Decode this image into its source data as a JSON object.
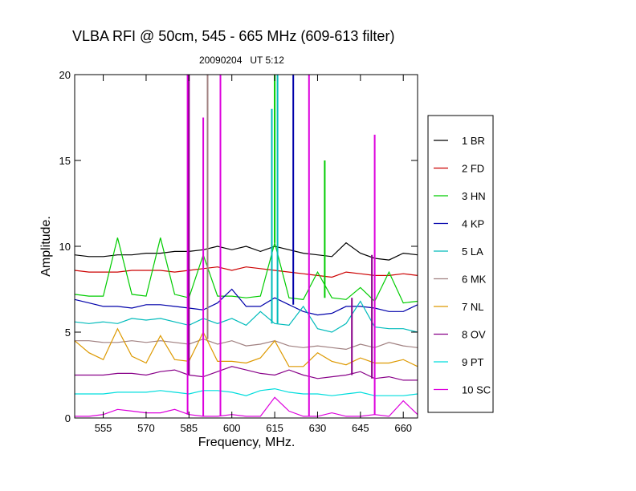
{
  "chart_data": {
    "type": "line",
    "title": "VLBA RFI @ 50cm, 545 - 665 MHz  (609-613 filter)",
    "subtitle": "20090204   UT 5:12",
    "xlabel": "Frequency, MHz.",
    "ylabel": "Amplitude.",
    "xlim": [
      545,
      665
    ],
    "ylim": [
      0,
      20
    ],
    "xticks": [
      555,
      570,
      585,
      600,
      615,
      630,
      645,
      660
    ],
    "yticks": [
      0,
      5,
      10,
      15,
      20
    ],
    "grid": false,
    "legend_position": "right",
    "x_step": 5,
    "series": [
      {
        "name": "1 BR",
        "color": "#000000",
        "values": [
          9.5,
          9.4,
          9.4,
          9.5,
          9.5,
          9.6,
          9.6,
          9.7,
          9.7,
          9.8,
          10.0,
          9.8,
          10.0,
          9.7,
          10.0,
          9.8,
          9.6,
          9.5,
          9.4,
          10.2,
          9.6,
          9.3,
          9.2,
          9.6,
          9.5
        ]
      },
      {
        "name": "2 FD",
        "color": "#cc0000",
        "values": [
          8.6,
          8.5,
          8.5,
          8.5,
          8.6,
          8.6,
          8.6,
          8.5,
          8.6,
          8.7,
          8.8,
          8.6,
          8.8,
          8.7,
          8.6,
          8.5,
          8.4,
          8.3,
          8.2,
          8.5,
          8.4,
          8.3,
          8.3,
          8.4,
          8.3
        ]
      },
      {
        "name": "3 HN",
        "color": "#00cc00",
        "values": [
          7.2,
          7.1,
          7.1,
          10.5,
          7.2,
          7.1,
          10.5,
          7.2,
          7.0,
          9.5,
          7.1,
          7.1,
          7.0,
          7.1,
          10.2,
          7.0,
          6.9,
          8.5,
          7.0,
          6.9,
          7.6,
          6.8,
          8.5,
          6.7,
          6.8
        ]
      },
      {
        "name": "4 KP",
        "color": "#0000aa",
        "values": [
          6.9,
          6.7,
          6.5,
          6.5,
          6.4,
          6.6,
          6.6,
          6.5,
          6.4,
          6.3,
          6.7,
          7.5,
          6.5,
          6.5,
          7.0,
          6.6,
          6.2,
          6.0,
          6.1,
          6.5,
          6.5,
          6.4,
          6.2,
          6.2,
          6.6
        ]
      },
      {
        "name": "5 LA",
        "color": "#00bbbb",
        "values": [
          5.6,
          5.5,
          5.6,
          5.5,
          5.8,
          5.7,
          5.8,
          5.6,
          5.4,
          5.8,
          5.5,
          5.8,
          5.4,
          6.2,
          5.5,
          5.4,
          6.5,
          5.2,
          5.0,
          5.5,
          6.8,
          5.3,
          5.2,
          5.2,
          5.0
        ]
      },
      {
        "name": "6 MK",
        "color": "#a08080",
        "values": [
          4.5,
          4.5,
          4.4,
          4.4,
          4.5,
          4.4,
          4.5,
          4.4,
          4.3,
          4.6,
          4.3,
          4.5,
          4.2,
          4.3,
          4.5,
          4.2,
          4.1,
          4.2,
          4.1,
          4.0,
          4.3,
          4.1,
          4.4,
          4.2,
          4.1
        ]
      },
      {
        "name": "7 NL",
        "color": "#dd9900",
        "values": [
          4.5,
          3.8,
          3.4,
          5.2,
          3.6,
          3.2,
          4.8,
          3.4,
          3.3,
          5.0,
          3.3,
          3.3,
          3.2,
          3.5,
          4.5,
          3.0,
          3.0,
          3.8,
          3.3,
          3.1,
          3.5,
          3.2,
          3.2,
          3.4,
          3.0
        ]
      },
      {
        "name": "8 OV",
        "color": "#880088",
        "values": [
          2.5,
          2.5,
          2.5,
          2.6,
          2.6,
          2.5,
          2.7,
          2.8,
          2.5,
          2.4,
          2.7,
          3.0,
          2.8,
          2.6,
          2.5,
          2.8,
          2.5,
          2.3,
          2.4,
          2.5,
          2.7,
          2.3,
          2.4,
          2.2,
          2.2
        ]
      },
      {
        "name": "9 PT",
        "color": "#00dddd",
        "values": [
          1.4,
          1.4,
          1.4,
          1.5,
          1.5,
          1.5,
          1.6,
          1.5,
          1.4,
          1.6,
          1.6,
          1.5,
          1.3,
          1.6,
          1.7,
          1.5,
          1.4,
          1.4,
          1.3,
          1.4,
          1.5,
          1.3,
          1.3,
          1.3,
          1.4
        ]
      },
      {
        "name": "10 SC",
        "color": "#dd00dd",
        "values": [
          0.1,
          0.1,
          0.2,
          0.5,
          0.4,
          0.3,
          0.3,
          0.5,
          0.2,
          0.1,
          0.1,
          0.2,
          0.1,
          0.1,
          1.2,
          0.4,
          0.1,
          0.1,
          0.3,
          0.1,
          0.1,
          0.2,
          0.1,
          1.0,
          0.2
        ]
      }
    ],
    "spikes": [
      {
        "series": 9,
        "x": 584.5,
        "y": 20
      },
      {
        "series": 7,
        "x": 585.0,
        "y": 20
      },
      {
        "series": 9,
        "x": 590.0,
        "y": 17.5
      },
      {
        "series": 5,
        "x": 591.5,
        "y": 20
      },
      {
        "series": 9,
        "x": 596.0,
        "y": 20
      },
      {
        "series": 4,
        "x": 614.0,
        "y": 18.0
      },
      {
        "series": 2,
        "x": 615.0,
        "y": 20
      },
      {
        "series": 4,
        "x": 616.0,
        "y": 20
      },
      {
        "series": 3,
        "x": 621.5,
        "y": 20
      },
      {
        "series": 9,
        "x": 627.0,
        "y": 20
      },
      {
        "series": 2,
        "x": 632.5,
        "y": 15.0
      },
      {
        "series": 7,
        "x": 642.0,
        "y": 7.0
      },
      {
        "series": 9,
        "x": 650.0,
        "y": 16.5
      },
      {
        "series": 7,
        "x": 649.0,
        "y": 9.5
      }
    ]
  }
}
